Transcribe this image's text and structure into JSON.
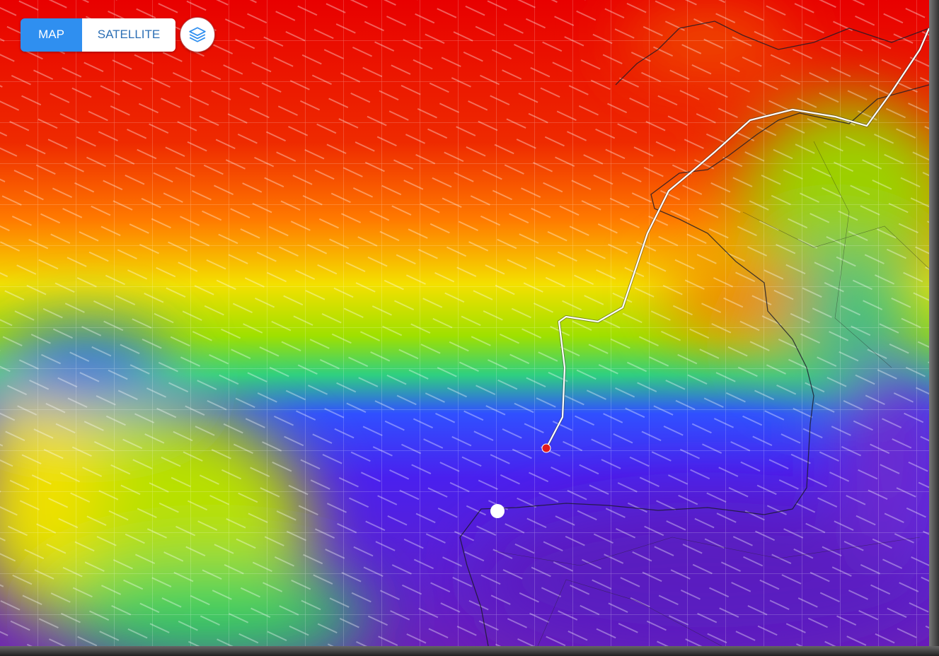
{
  "controls": {
    "map_label": "MAP",
    "satellite_label": "SATELLITE",
    "active": "MAP",
    "layers_icon": "layers-icon"
  },
  "colors": {
    "active_button": "#2f8ff0",
    "inactive_text": "#2c6fb5",
    "route": "#ffffff",
    "boat_marker": "#e21b1b",
    "waypoint_marker": "#ffffff"
  }
}
